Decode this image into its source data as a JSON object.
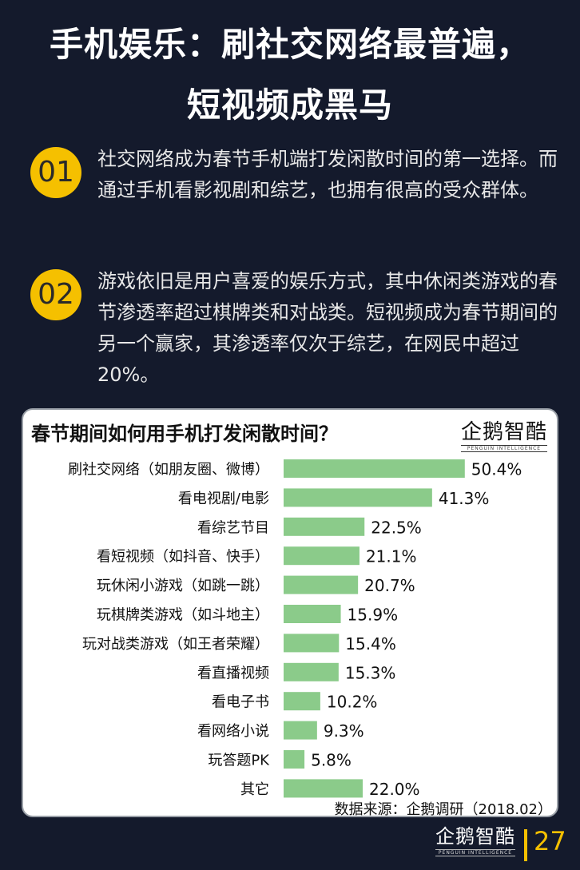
{
  "header": {
    "title_line1": "手机娱乐：刷社交网络最普遍，",
    "title_line2": "短视频成黑马"
  },
  "points": [
    {
      "num": "01",
      "text": "社交网络成为春节手机端打发闲散时间的第一选择。而通过手机看影视剧和综艺，也拥有很高的受众群体。"
    },
    {
      "num": "02",
      "text": "游戏依旧是用户喜爱的娱乐方式，其中休闲类游戏的春节渗透率超过棋牌类和对战类。短视频成为春节期间的另一个赢家，其渗透率仅次于综艺，在网民中超过20%。"
    }
  ],
  "logo": {
    "cn": "企鹅智酷",
    "en": "PENGUIN INTELLIGENCE"
  },
  "chart_data": {
    "type": "bar",
    "orientation": "horizontal",
    "title": "春节期间如何用手机打发闲散时间？",
    "categories": [
      "刷社交网络（如朋友圈、微博）",
      "看电视剧/电影",
      "看综艺节目",
      "看短视频（如抖音、快手）",
      "玩休闲小游戏（如跳一跳）",
      "玩棋牌类游戏（如斗地主）",
      "玩对战类游戏（如王者荣耀）",
      "看直播视频",
      "看电子书",
      "看网络小说",
      "玩答题PK",
      "其它"
    ],
    "values": [
      50.4,
      41.3,
      22.5,
      21.1,
      20.7,
      15.9,
      15.4,
      15.3,
      10.2,
      9.3,
      5.8,
      22.0
    ],
    "value_labels": [
      "50.4%",
      "41.3%",
      "22.5%",
      "21.1%",
      "20.7%",
      "15.9%",
      "15.4%",
      "15.3%",
      "10.2%",
      "9.3%",
      "5.8%",
      "22.0%"
    ],
    "bar_color": "#8bcb8a",
    "grid": false,
    "source": "数据来源：企鹅调研（2018.02）"
  },
  "footer": {
    "page": "27"
  },
  "colors": {
    "background": "#141a2c",
    "accent": "#f5c000",
    "bar": "#8bcb8a"
  }
}
